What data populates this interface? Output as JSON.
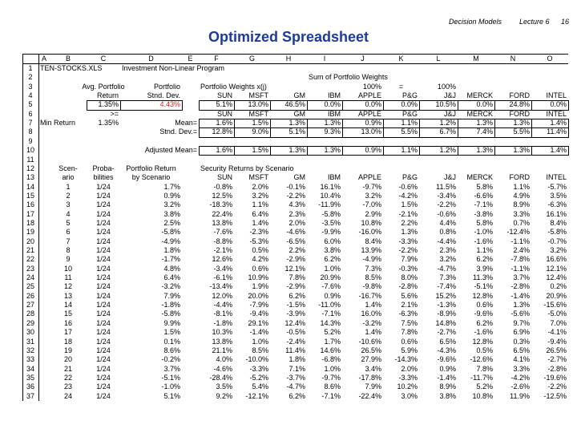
{
  "header": {
    "course": "Decision Models",
    "lecture": "Lecture 6",
    "page": "16"
  },
  "title": "Optimized Spreadsheet",
  "sheet": {
    "columns": [
      "A",
      "B",
      "C",
      "D",
      "E",
      "F",
      "G",
      "H",
      "I",
      "J",
      "K",
      "L",
      "M",
      "N",
      "O"
    ],
    "rows": [
      {
        "number": "1",
        "cells": [
          "TEN-STOCKS.XLS",
          null,
          null,
          "Investment Non-Linear Program",
          null,
          null,
          null,
          null,
          null,
          null,
          null,
          null,
          null,
          null,
          null
        ]
      },
      {
        "number": "2",
        "cells": [
          null,
          null,
          null,
          null,
          null,
          null,
          null,
          null,
          "Sum of Portfolio Weights",
          null,
          null,
          null,
          null,
          null,
          null
        ]
      },
      {
        "number": "3",
        "cells": [
          null,
          null,
          "Avg. Portfolio",
          "Portfolio",
          null,
          "Portfolio Weights x(j)",
          null,
          null,
          null,
          "100%",
          "=",
          "100%",
          null,
          null,
          null
        ]
      },
      {
        "number": "4",
        "cells": [
          null,
          null,
          "Return",
          "Stnd. Dev.",
          null,
          "SUN",
          "MSFT",
          "GM",
          "IBM",
          "APPLE",
          "P&G",
          "J&J",
          "MERCK",
          "FORD",
          "INTEL"
        ]
      },
      {
        "number": "5",
        "cells": [
          null,
          null,
          "1.35%",
          "4.43%",
          null,
          "5.1%",
          "13.0%",
          "46.5%",
          "0.0%",
          "0.0%",
          "0.0%",
          "10.5%",
          "0.0%",
          "24.8%",
          "0.0%"
        ]
      },
      {
        "number": "6",
        "cells": [
          null,
          null,
          ">=",
          null,
          null,
          "SUN",
          "MSFT",
          "GM",
          "IBM",
          "APPLE",
          "P&G",
          "J&J",
          "MERCK",
          "FORD",
          "INTEL"
        ]
      },
      {
        "number": "7",
        "cells": [
          "Min Return",
          null,
          "1.35%",
          null,
          "Mean=",
          "1.6%",
          "1.5%",
          "1.3%",
          "1.3%",
          "0.9%",
          "1.1%",
          "1.2%",
          "1.3%",
          "1.3%",
          "1.4%"
        ]
      },
      {
        "number": "8",
        "cells": [
          null,
          null,
          null,
          null,
          "Stnd. Dev.=",
          "12.8%",
          "9.0%",
          "5.1%",
          "9.3%",
          "13.0%",
          "5.5%",
          "6.7%",
          "7.4%",
          "5.5%",
          "11.4%"
        ]
      },
      {
        "number": "9",
        "cells": [
          null,
          null,
          null,
          null,
          null,
          null,
          null,
          null,
          null,
          null,
          null,
          null,
          null,
          null,
          null
        ]
      },
      {
        "number": "10",
        "cells": [
          null,
          null,
          null,
          null,
          "Adjusted Mean=",
          "1.6%",
          "1.5%",
          "1.3%",
          "1.3%",
          "0.9%",
          "1.1%",
          "1.2%",
          "1.3%",
          "1.3%",
          "1.4%"
        ]
      },
      {
        "number": "11",
        "cells": [
          null,
          null,
          null,
          null,
          null,
          null,
          null,
          null,
          null,
          null,
          null,
          null,
          null,
          null,
          null
        ]
      },
      {
        "number": "12",
        "cells": [
          null,
          "Scen-",
          "Proba-",
          "Portfolio Return",
          null,
          "Security Returns by Scenario",
          null,
          null,
          null,
          null,
          null,
          null,
          null,
          null,
          null
        ]
      },
      {
        "number": "13",
        "cells": [
          null,
          "ario",
          "bilities",
          "by Scenario",
          null,
          "SUN",
          "MSFT",
          "GM",
          "IBM",
          "APPLE",
          "P&G",
          "J&J",
          "MERCK",
          "FORD",
          "INTEL"
        ]
      },
      {
        "number": "14",
        "cells": [
          null,
          "1",
          "1/24",
          "1.7%",
          null,
          "-0.8%",
          "2.0%",
          "-0.1%",
          "16.1%",
          "-9.7%",
          "-0.6%",
          "11.5%",
          "5.8%",
          "1.1%",
          "-5.7%"
        ]
      },
      {
        "number": "15",
        "cells": [
          null,
          "2",
          "1/24",
          "0.9%",
          null,
          "12.5%",
          "3.2%",
          "-2.2%",
          "10.4%",
          "3.2%",
          "-4.2%",
          "-3.4%",
          "-6.6%",
          "4.9%",
          "3.5%"
        ]
      },
      {
        "number": "16",
        "cells": [
          null,
          "3",
          "1/24",
          "3.2%",
          null,
          "-18.3%",
          "1.1%",
          "4.3%",
          "-11.9%",
          "-7.0%",
          "1.5%",
          "-2.2%",
          "-7.1%",
          "8.9%",
          "-6.3%"
        ]
      },
      {
        "number": "17",
        "cells": [
          null,
          "4",
          "1/24",
          "3.8%",
          null,
          "22.4%",
          "6.4%",
          "2.3%",
          "-5.8%",
          "2.9%",
          "-2.1%",
          "-0.6%",
          "-3.8%",
          "3.3%",
          "16.1%"
        ]
      },
      {
        "number": "18",
        "cells": [
          null,
          "5",
          "1/24",
          "2.5%",
          null,
          "13.8%",
          "1.4%",
          "2.0%",
          "-3.5%",
          "10.8%",
          "2.2%",
          "4.4%",
          "5.8%",
          "0.7%",
          "8.4%"
        ]
      },
      {
        "number": "19",
        "cells": [
          null,
          "6",
          "1/24",
          "-5.8%",
          null,
          "-7.6%",
          "-2.3%",
          "-4.6%",
          "-9.9%",
          "-16.0%",
          "1.3%",
          "0.8%",
          "-1.0%",
          "-12.4%",
          "-5.8%"
        ]
      },
      {
        "number": "20",
        "cells": [
          null,
          "7",
          "1/24",
          "-4.9%",
          null,
          "-8.8%",
          "-5.3%",
          "-6.5%",
          "6.0%",
          "8.4%",
          "-3.3%",
          "-4.4%",
          "-1.6%",
          "-1.1%",
          "-0.7%"
        ]
      },
      {
        "number": "21",
        "cells": [
          null,
          "8",
          "1/24",
          "1.8%",
          null,
          "-2.1%",
          "0.5%",
          "2.2%",
          "3.8%",
          "13.9%",
          "-2.2%",
          "2.3%",
          "1.1%",
          "2.4%",
          "3.2%"
        ]
      },
      {
        "number": "22",
        "cells": [
          null,
          "9",
          "1/24",
          "-1.7%",
          null,
          "12.6%",
          "4.2%",
          "-2.9%",
          "6.2%",
          "-4.9%",
          "7.9%",
          "3.2%",
          "6.2%",
          "-7.8%",
          "16.6%"
        ]
      },
      {
        "number": "23",
        "cells": [
          null,
          "10",
          "1/24",
          "4.8%",
          null,
          "-3.4%",
          "0.6%",
          "12.1%",
          "1.0%",
          "7.3%",
          "-0.3%",
          "-4.7%",
          "3.9%",
          "-1.1%",
          "12.1%"
        ]
      },
      {
        "number": "24",
        "cells": [
          null,
          "11",
          "1/24",
          "6.4%",
          null,
          "-6.1%",
          "10.9%",
          "7.8%",
          "20.9%",
          "8.5%",
          "8.0%",
          "7.3%",
          "11.3%",
          "3.7%",
          "12.4%"
        ]
      },
      {
        "number": "25",
        "cells": [
          null,
          "12",
          "1/24",
          "-3.2%",
          null,
          "-13.4%",
          "1.9%",
          "-2.9%",
          "-7.6%",
          "-9.8%",
          "-2.8%",
          "-7.4%",
          "-5.1%",
          "-2.8%",
          "0.2%"
        ]
      },
      {
        "number": "26",
        "cells": [
          null,
          "13",
          "1/24",
          "7.9%",
          null,
          "12.0%",
          "20.0%",
          "6.2%",
          "0.9%",
          "-16.7%",
          "5.6%",
          "15.2%",
          "12.8%",
          "-1.4%",
          "20.9%"
        ]
      },
      {
        "number": "27",
        "cells": [
          null,
          "14",
          "1/24",
          "-1.8%",
          null,
          "-4.4%",
          "-7.9%",
          "-1.5%",
          "-11.0%",
          "1.4%",
          "2.1%",
          "-1.3%",
          "0.6%",
          "1.3%",
          "-15.6%"
        ]
      },
      {
        "number": "28",
        "cells": [
          null,
          "15",
          "1/24",
          "-5.8%",
          null,
          "-8.1%",
          "-9.4%",
          "-3.9%",
          "-7.1%",
          "16.0%",
          "-6.3%",
          "-8.9%",
          "-9.6%",
          "-5.6%",
          "-5.0%"
        ]
      },
      {
        "number": "29",
        "cells": [
          null,
          "16",
          "1/24",
          "9.9%",
          null,
          "-1.8%",
          "29.1%",
          "12.4%",
          "14.3%",
          "-3.2%",
          "7.5%",
          "14.8%",
          "6.2%",
          "9.7%",
          "7.0%"
        ]
      },
      {
        "number": "30",
        "cells": [
          null,
          "17",
          "1/24",
          "1.5%",
          null,
          "10.3%",
          "-1.4%",
          "-0.5%",
          "5.2%",
          "1.4%",
          "7.8%",
          "-2.7%",
          "-1.6%",
          "6.9%",
          "-4.1%"
        ]
      },
      {
        "number": "31",
        "cells": [
          null,
          "18",
          "1/24",
          "0.1%",
          null,
          "13.8%",
          "1.0%",
          "-2.4%",
          "1.7%",
          "-10.6%",
          "0.6%",
          "6.5%",
          "12.8%",
          "0.3%",
          "-9.4%"
        ]
      },
      {
        "number": "32",
        "cells": [
          null,
          "19",
          "1/24",
          "8.6%",
          null,
          "21.1%",
          "8.5%",
          "11.4%",
          "14.6%",
          "26.5%",
          "5.9%",
          "-4.3%",
          "0.5%",
          "6.5%",
          "26.5%"
        ]
      },
      {
        "number": "33",
        "cells": [
          null,
          "20",
          "1/24",
          "-0.2%",
          null,
          "4.0%",
          "-10.0%",
          "1.8%",
          "-6.8%",
          "27.9%",
          "-14.3%",
          "-9.6%",
          "-12.6%",
          "4.1%",
          "-2.7%"
        ]
      },
      {
        "number": "34",
        "cells": [
          null,
          "21",
          "1/24",
          "3.7%",
          null,
          "-4.6%",
          "-3.3%",
          "7.1%",
          "1.0%",
          "3.4%",
          "2.0%",
          "0.9%",
          "7.8%",
          "3.3%",
          "-2.8%"
        ]
      },
      {
        "number": "35",
        "cells": [
          null,
          "22",
          "1/24",
          "-5.1%",
          null,
          "-28.4%",
          "-5.2%",
          "-3.7%",
          "-9.7%",
          "-17.8%",
          "-3.3%",
          "-1.4%",
          "-11.7%",
          "-4.2%",
          "-19.6%"
        ]
      },
      {
        "number": "36",
        "cells": [
          null,
          "23",
          "1/24",
          "-1.0%",
          null,
          "3.5%",
          "5.4%",
          "-4.7%",
          "8.6%",
          "7.9%",
          "10.2%",
          "8.9%",
          "5.2%",
          "-2.6%",
          "-2.2%"
        ]
      },
      {
        "number": "37",
        "cells": [
          null,
          "24",
          "1/24",
          "5.1%",
          null,
          "9.2%",
          "-12.1%",
          "6.2%",
          "-7.1%",
          "-22.4%",
          "3.0%",
          "3.8%",
          "10.8%",
          "11.9%",
          "-12.5%"
        ]
      }
    ]
  }
}
